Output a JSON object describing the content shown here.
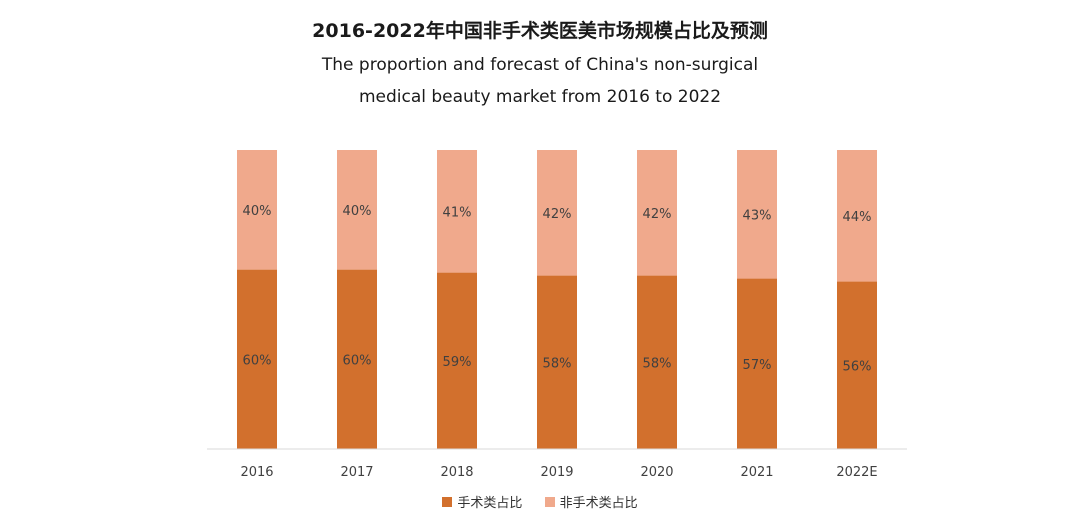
{
  "title": "2016-2022年中国非手术类医美市场规模占比及预测",
  "subtitle_line1": "The proportion and forecast of China's non-surgical",
  "subtitle_line2": "medical beauty market from 2016 to 2022",
  "colors": {
    "surgical": "#D2702D",
    "non_surgical": "#F0A98C",
    "axis": "#d9d9d9",
    "label": "#404040"
  },
  "chart_data": {
    "type": "bar",
    "stacked": true,
    "percent": true,
    "categories": [
      "2016",
      "2017",
      "2018",
      "2019",
      "2020",
      "2021",
      "2022E"
    ],
    "series": [
      {
        "name": "手术类占比",
        "values": [
          60,
          60,
          59,
          58,
          58,
          57,
          56
        ],
        "labels": [
          "60%",
          "60%",
          "59%",
          "58%",
          "58%",
          "57%",
          "56%"
        ]
      },
      {
        "name": "非手术类占比",
        "values": [
          40,
          40,
          41,
          42,
          42,
          43,
          44
        ],
        "labels": [
          "40%",
          "40%",
          "41%",
          "42%",
          "42%",
          "43%",
          "44%"
        ]
      }
    ],
    "ylim": [
      0,
      100
    ],
    "legend_position": "bottom"
  }
}
